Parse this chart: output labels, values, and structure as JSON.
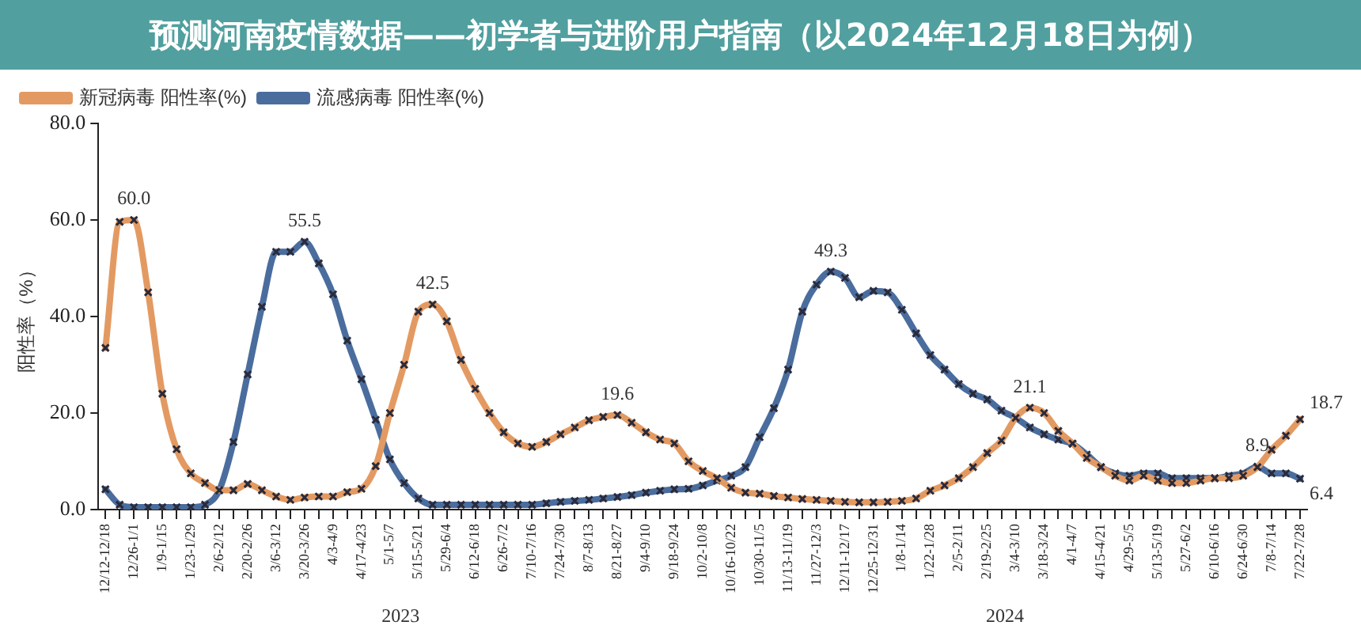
{
  "chart_data": {
    "type": "line",
    "title": "预测河南疫情数据——初学者与进阶用户指南（以2024年12月18日为例）",
    "ylabel": "阳性率（%）",
    "categories": [
      "12/12-12/18",
      null,
      "12/26-1/1",
      null,
      "1/9-1/15",
      null,
      "1/23-1/29",
      null,
      "2/6-2/12",
      null,
      "2/20-2/26",
      null,
      "3/6-3/12",
      null,
      "3/20-3/26",
      null,
      "4/3-4/9",
      null,
      "4/17-4/23",
      null,
      "5/1-5/7",
      null,
      "5/15-5/21",
      null,
      "5/29-6/4",
      null,
      "6/12-6/18",
      null,
      "6/26-7/2",
      null,
      "7/10-7/16",
      null,
      "7/24-7/30",
      null,
      "8/7-8/13",
      null,
      "8/21-8/27",
      null,
      "9/4-9/10",
      null,
      "9/18-9/24",
      null,
      "10/2-10/8",
      null,
      "10/16-10/22",
      null,
      "10/30-11/5",
      null,
      "11/13-11/19",
      null,
      "11/27-12/3",
      null,
      "12/11-12/17",
      null,
      "12/25-12/31",
      null,
      "1/8-1/14",
      null,
      "1/22-1/28",
      null,
      "2/5-2/11",
      null,
      "2/19-2/25",
      null,
      "3/4-3/10",
      null,
      "3/18-3/24",
      null,
      "4/1-4/7",
      null,
      "4/15-4/21",
      null,
      "4/29-5/5",
      null,
      "5/13-5/19",
      null,
      "5/27-6/2",
      null,
      "6/10-6/16",
      null,
      "6/24-6/30",
      null,
      "7/8-7/14",
      null,
      "7/22-7/28"
    ],
    "series": [
      {
        "name": "新冠病毒 阳性率(%)",
        "color": "#e39a62",
        "values": [
          33.5,
          59.6,
          60.0,
          45,
          24,
          12.5,
          7.5,
          5.5,
          4,
          4,
          5.3,
          4,
          2.7,
          2,
          2.5,
          2.7,
          2.7,
          3.6,
          4.3,
          9,
          20,
          30,
          41,
          42.5,
          39,
          31,
          25,
          20,
          16,
          13.7,
          13,
          14,
          15.6,
          17,
          18.5,
          19.2,
          19.6,
          18,
          16,
          14.5,
          13.7,
          10,
          8,
          6.5,
          4.5,
          3.5,
          3.3,
          2.8,
          2.5,
          2.2,
          2,
          1.8,
          1.6,
          1.5,
          1.5,
          1.6,
          1.8,
          2.3,
          3.9,
          5,
          6.5,
          8.8,
          11.7,
          14.3,
          19,
          21.1,
          20,
          16.3,
          13.7,
          10.7,
          8.8,
          7,
          6,
          7,
          6,
          5.5,
          5.5,
          6,
          6.5,
          6.5,
          7,
          8.8,
          12.4,
          15.3,
          18.7
        ],
        "value_labels": [
          null,
          null,
          "60.0",
          null,
          null,
          null,
          null,
          null,
          null,
          null,
          null,
          null,
          null,
          null,
          null,
          null,
          null,
          null,
          null,
          null,
          null,
          null,
          null,
          "42.5",
          null,
          null,
          null,
          null,
          null,
          null,
          null,
          null,
          null,
          null,
          null,
          null,
          "19.6",
          null,
          null,
          null,
          null,
          null,
          null,
          null,
          null,
          null,
          null,
          null,
          null,
          null,
          null,
          null,
          null,
          null,
          null,
          null,
          null,
          null,
          null,
          null,
          null,
          null,
          null,
          null,
          null,
          "21.1",
          null,
          null,
          null,
          null,
          null,
          null,
          null,
          null,
          null,
          null,
          null,
          null,
          null,
          null,
          null,
          null,
          null,
          null,
          "18.7"
        ]
      },
      {
        "name": "流感病毒 阳性率(%)",
        "color": "#4a6d9e",
        "values": [
          4.2,
          1,
          0.5,
          0.5,
          0.5,
          0.5,
          0.5,
          1,
          4,
          14,
          28,
          42,
          53.4,
          53.4,
          55.5,
          51,
          44.6,
          35,
          27,
          18.6,
          10.4,
          5.5,
          2.3,
          1,
          1,
          1,
          1,
          1,
          1,
          1,
          1,
          1.3,
          1.6,
          1.8,
          2,
          2.3,
          2.6,
          3,
          3.5,
          3.9,
          4.2,
          4.3,
          5,
          6,
          7,
          8.8,
          15,
          21,
          29,
          41,
          46.6,
          49.3,
          48,
          44,
          45.3,
          45,
          41.4,
          36.5,
          32,
          29,
          26,
          24,
          22.8,
          20.5,
          19,
          17,
          15.6,
          14.5,
          13.6,
          11.4,
          8.8,
          7.5,
          7,
          7.5,
          7.5,
          6.5,
          6.5,
          6.5,
          6.5,
          7,
          7.5,
          8.9,
          7.5,
          7.5,
          6.4
        ],
        "value_labels": [
          null,
          null,
          null,
          null,
          null,
          null,
          null,
          null,
          null,
          null,
          null,
          null,
          null,
          null,
          "55.5",
          null,
          null,
          null,
          null,
          null,
          null,
          null,
          null,
          null,
          null,
          null,
          null,
          null,
          null,
          null,
          null,
          null,
          null,
          null,
          null,
          null,
          null,
          null,
          null,
          null,
          null,
          null,
          null,
          null,
          null,
          null,
          null,
          null,
          null,
          null,
          null,
          "49.3",
          null,
          null,
          null,
          null,
          null,
          null,
          null,
          null,
          null,
          null,
          null,
          null,
          null,
          null,
          null,
          null,
          null,
          null,
          null,
          null,
          null,
          null,
          null,
          null,
          null,
          null,
          null,
          null,
          null,
          "8.9",
          null,
          null,
          "6.4"
        ]
      }
    ],
    "ylim": [
      0,
      80
    ],
    "yticks": [
      {
        "value": 0,
        "label": "0.0"
      },
      {
        "value": 20,
        "label": "20.0"
      },
      {
        "value": 40,
        "label": "40.0"
      },
      {
        "value": 60,
        "label": "60.0"
      },
      {
        "value": 80,
        "label": "80.0"
      }
    ],
    "grid": false,
    "legend": "top left",
    "marker": "cross",
    "line_style": "solid",
    "annotations": [
      "2023",
      "2024"
    ]
  }
}
